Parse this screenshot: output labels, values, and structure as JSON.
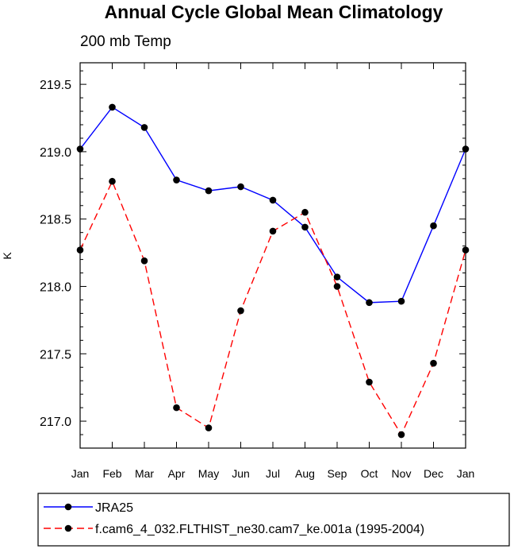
{
  "chart_data": {
    "type": "line",
    "title": "Annual Cycle Global Mean Climatology",
    "subtitle": "200 mb Temp",
    "xlabel": "",
    "ylabel": "K",
    "categories": [
      "Jan",
      "Feb",
      "Mar",
      "Apr",
      "May",
      "Jun",
      "Jul",
      "Aug",
      "Sep",
      "Oct",
      "Nov",
      "Dec",
      "Jan"
    ],
    "ylim": [
      216.8,
      219.66
    ],
    "yticks": [
      "219.5",
      "219.0",
      "218.5",
      "218.0",
      "217.5",
      "217.0"
    ],
    "ytick_values": [
      219.5,
      219.0,
      218.5,
      218.0,
      217.5,
      217.0
    ],
    "grid": false,
    "legend_position": "bottom",
    "series": [
      {
        "name": "JRA25",
        "color": "#0000ff",
        "style": "solid",
        "values": [
          219.02,
          219.33,
          219.18,
          218.79,
          218.71,
          218.74,
          218.64,
          218.44,
          218.07,
          217.88,
          217.89,
          218.45,
          219.02
        ]
      },
      {
        "name": "f.cam6_4_032.FLTHIST_ne30.cam7_ke.001a (1995-2004)",
        "color": "#ff0000",
        "style": "dashed",
        "values": [
          218.27,
          218.78,
          218.19,
          217.1,
          216.95,
          217.82,
          218.41,
          218.55,
          218.0,
          217.29,
          216.9,
          217.43,
          218.27
        ]
      }
    ]
  }
}
